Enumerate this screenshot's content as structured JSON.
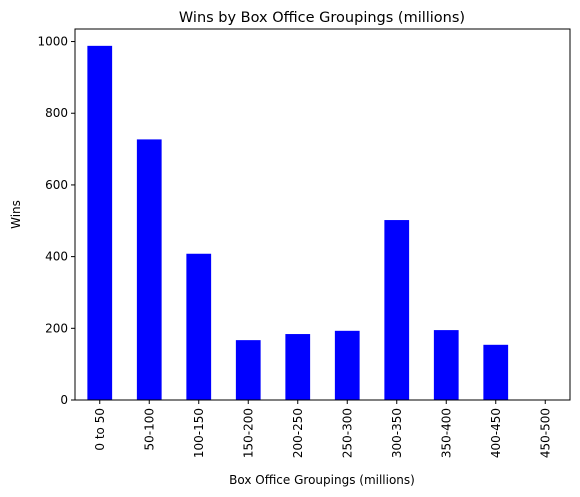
{
  "chart_data": {
    "type": "bar",
    "title": "Wins by Box Office Groupings (millions)",
    "xlabel": "Box Office Groupings (millions)",
    "ylabel": "Wins",
    "categories": [
      "0 to 50",
      "50-100",
      "100-150",
      "150-200",
      "200-250",
      "250-300",
      "300-350",
      "350-400",
      "400-450",
      "450-500"
    ],
    "values": [
      988,
      727,
      408,
      167,
      184,
      193,
      502,
      195,
      154,
      0
    ],
    "ylim": [
      0,
      1035
    ],
    "yticks": [
      0,
      200,
      400,
      600,
      800,
      1000
    ],
    "grid": false,
    "bar_color": "#0000ff"
  }
}
